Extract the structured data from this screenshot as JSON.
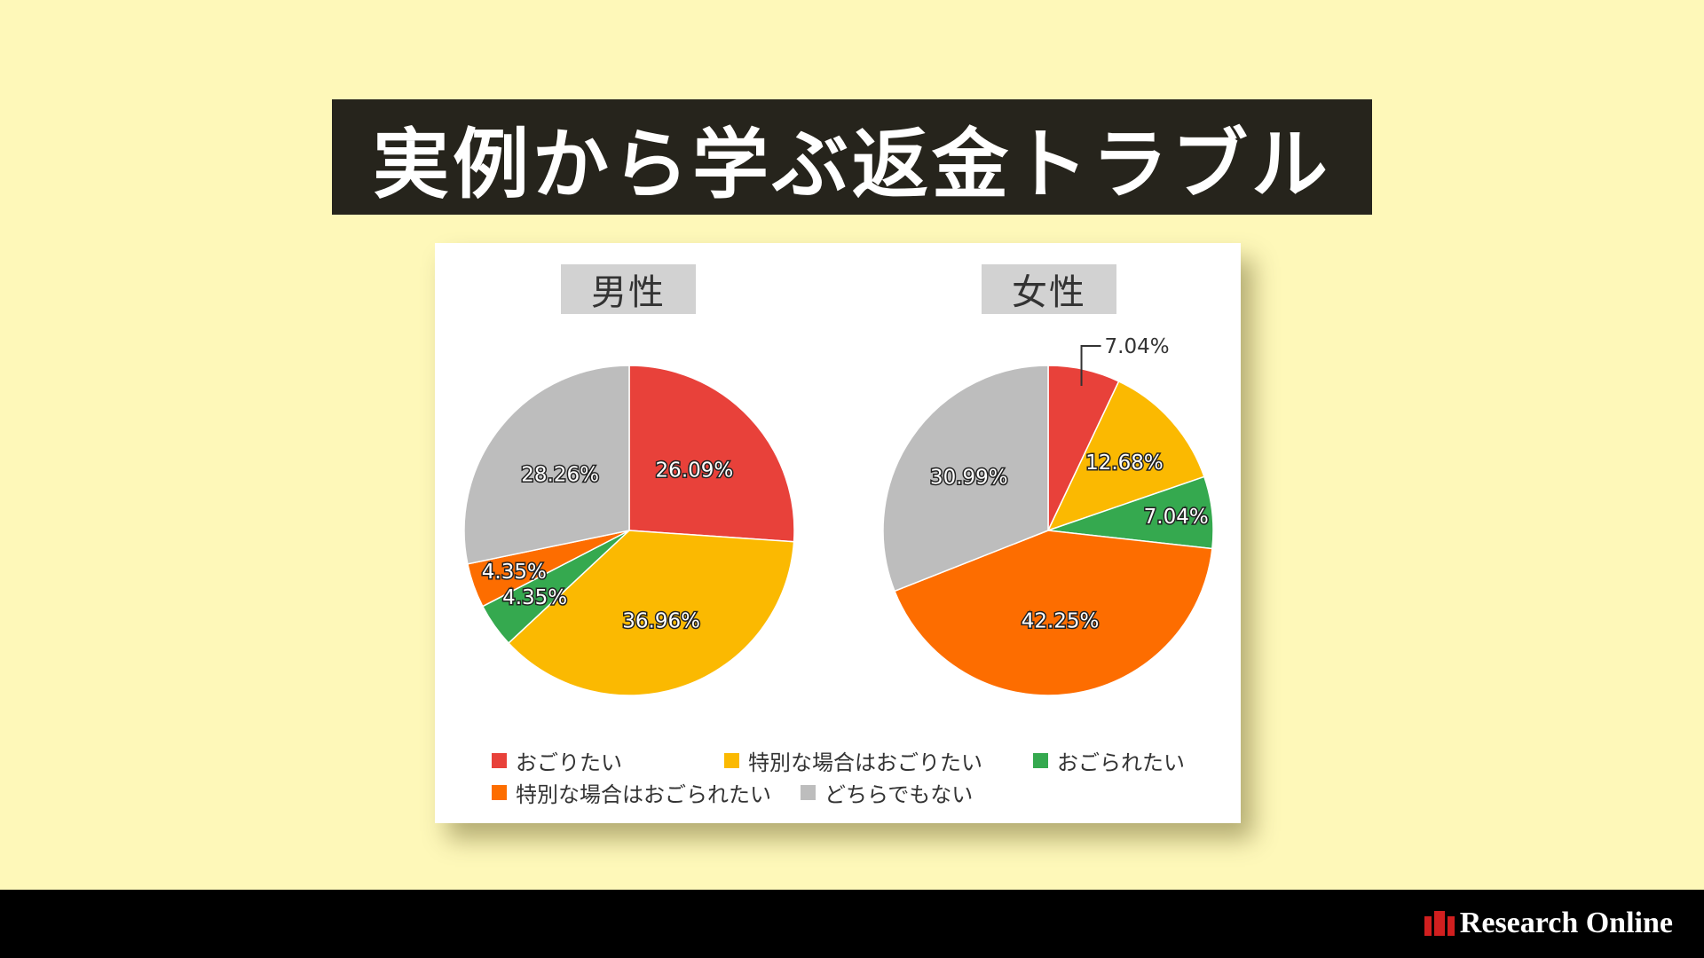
{
  "title": "実例から学ぶ返金トラブル",
  "brand": {
    "name": "Research Online",
    "color": "#d11f1f"
  },
  "colors": {
    "background": "#fef8b9",
    "banner": "#26241c",
    "red": "#e8413a",
    "yellow": "#fbb901",
    "green": "#35a94f",
    "orange": "#fd6d00",
    "gray": "#bdbdbd"
  },
  "chart_data": [
    {
      "type": "pie",
      "title": "男性",
      "slices": [
        {
          "label": "おごりたい",
          "value": 26.09,
          "text": "26.09%",
          "color": "#e8413a"
        },
        {
          "label": "特別な場合はおごりたい",
          "value": 36.96,
          "text": "36.96%",
          "color": "#fbb901"
        },
        {
          "label": "おごられたい",
          "value": 4.35,
          "text": "4.35%",
          "color": "#35a94f"
        },
        {
          "label": "特別な場合はおごられたい",
          "value": 4.35,
          "text": "4.35%",
          "color": "#fd6d00"
        },
        {
          "label": "どちらでもない",
          "value": 28.26,
          "text": "28.26%",
          "color": "#bdbdbd"
        }
      ]
    },
    {
      "type": "pie",
      "title": "女性",
      "slices": [
        {
          "label": "おごりたい",
          "value": 7.04,
          "text": "7.04%",
          "color": "#e8413a"
        },
        {
          "label": "特別な場合はおごりたい",
          "value": 12.68,
          "text": "12.68%",
          "color": "#fbb901"
        },
        {
          "label": "おごられたい",
          "value": 7.04,
          "text": "7.04%",
          "color": "#35a94f"
        },
        {
          "label": "特別な場合はおごられたい",
          "value": 42.25,
          "text": "42.25%",
          "color": "#fd6d00"
        },
        {
          "label": "どちらでもない",
          "value": 30.99,
          "text": "30.99%",
          "color": "#bdbdbd"
        }
      ]
    }
  ],
  "legend": [
    {
      "label": "おごりたい",
      "color": "#e8413a"
    },
    {
      "label": "特別な場合はおごりたい",
      "color": "#fbb901"
    },
    {
      "label": "おごられたい",
      "color": "#35a94f"
    },
    {
      "label": "特別な場合はおごられたい",
      "color": "#fd6d00"
    },
    {
      "label": "どちらでもない",
      "color": "#bdbdbd"
    }
  ]
}
